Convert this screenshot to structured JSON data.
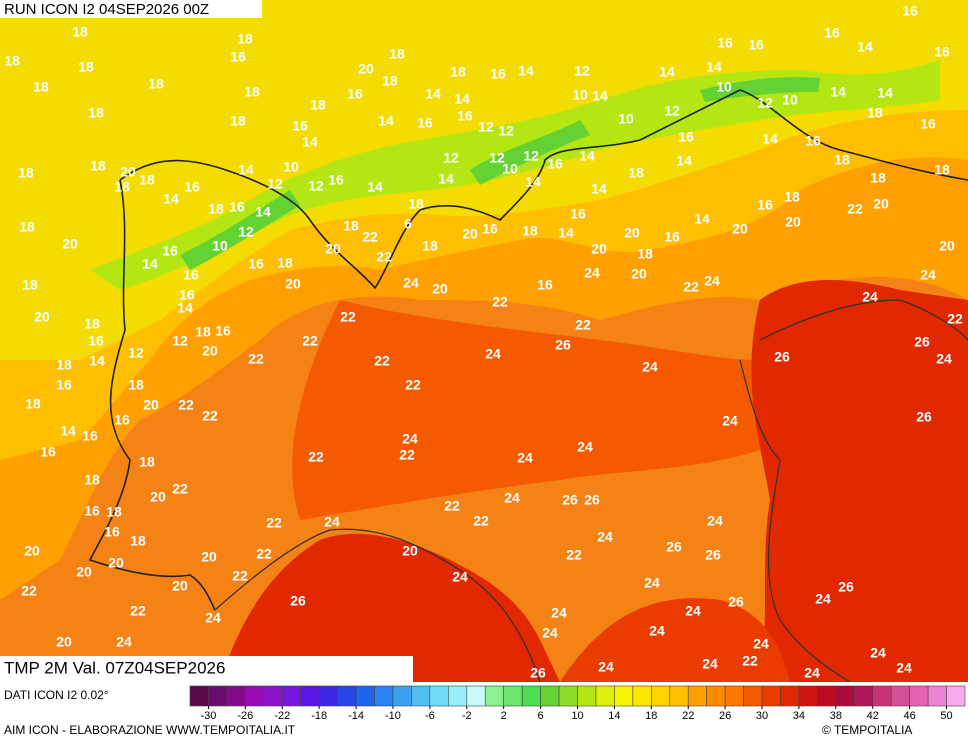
{
  "header": {
    "run": "RUN ICON I2 04SEP2026 00Z",
    "field": "TMP 2M Val. 07Z04SEP2026",
    "source": "DATI ICON I2 0.02°",
    "credit": "AIM ICON - ELABORAZIONE WWW.TEMPOITALIA.IT",
    "copyright": "© TEMPOITALIA"
  },
  "map_labels": [
    18,
    18,
    16,
    18,
    18,
    20,
    18,
    18,
    16,
    14,
    12,
    14,
    14,
    16,
    16,
    16,
    14,
    16,
    16,
    18,
    18,
    18,
    18,
    16,
    18,
    14,
    14,
    10,
    14,
    12,
    10,
    12,
    10,
    14,
    14,
    18,
    18,
    16,
    14,
    16,
    16,
    12,
    12,
    10,
    16,
    14,
    16,
    18,
    16,
    14,
    12,
    12,
    14,
    14,
    18,
    18,
    18,
    20,
    18,
    16,
    14,
    10,
    12,
    12,
    16,
    14,
    14,
    10,
    12,
    16,
    14,
    14,
    18,
    18,
    18,
    14,
    18,
    16,
    14,
    12,
    10,
    16,
    14,
    18,
    18,
    20,
    18,
    22,
    22,
    6,
    18,
    18,
    20,
    16,
    18,
    14,
    16,
    20,
    20,
    18,
    16,
    14,
    20,
    16,
    18,
    20,
    22,
    20,
    20,
    20,
    18,
    16,
    24,
    20,
    22,
    24,
    24,
    24,
    24,
    20,
    16,
    22,
    18,
    16,
    20,
    16,
    20,
    22,
    18,
    14,
    18,
    16,
    16,
    12,
    22,
    18,
    14,
    12,
    20,
    22,
    22,
    24,
    26,
    22,
    24,
    26,
    26,
    24,
    22,
    16,
    18,
    22,
    18,
    20,
    22,
    22,
    16,
    14,
    16,
    24,
    22,
    24,
    26,
    16,
    18,
    22,
    24,
    24,
    18,
    20,
    22,
    24,
    26,
    26,
    22,
    16,
    18,
    22,
    24,
    22,
    24,
    16,
    18,
    24,
    26,
    20,
    22,
    20,
    22,
    26,
    20,
    20,
    22,
    24,
    20,
    20,
    24,
    26,
    22,
    26,
    24,
    26,
    22,
    24,
    24,
    24,
    20,
    24,
    24,
    24,
    24,
    24,
    22,
    24,
    24,
    24,
    24,
    26
  ],
  "colorbar": {
    "lim": [
      -32,
      52
    ],
    "ticks": [
      -30,
      -26,
      -22,
      -18,
      -14,
      -10,
      -6,
      -2,
      2,
      6,
      10,
      14,
      18,
      22,
      26,
      30,
      34,
      38,
      42,
      46,
      50
    ],
    "colors": [
      "#5a0a4a",
      "#6e0a6e",
      "#820a8c",
      "#960ab4",
      "#8c14c8",
      "#7814dc",
      "#5a14e6",
      "#3c28e6",
      "#2846e6",
      "#1e64f0",
      "#2882f0",
      "#3ca0f0",
      "#50bef0",
      "#6edcf5",
      "#96f0fa",
      "#c8fafa",
      "#8cf08c",
      "#6ee66e",
      "#50dc50",
      "#64d232",
      "#8cdc28",
      "#b4e614",
      "#dcf00a",
      "#f5f500",
      "#fae600",
      "#ffd200",
      "#ffbe00",
      "#ffa000",
      "#ff8c00",
      "#ff7800",
      "#f55a00",
      "#eb3c00",
      "#e12800",
      "#d21414",
      "#be0a1e",
      "#aa0a3c",
      "#b4145a",
      "#c83278",
      "#d25096",
      "#e164b4",
      "#eb82d2",
      "#f5aaeb"
    ]
  }
}
